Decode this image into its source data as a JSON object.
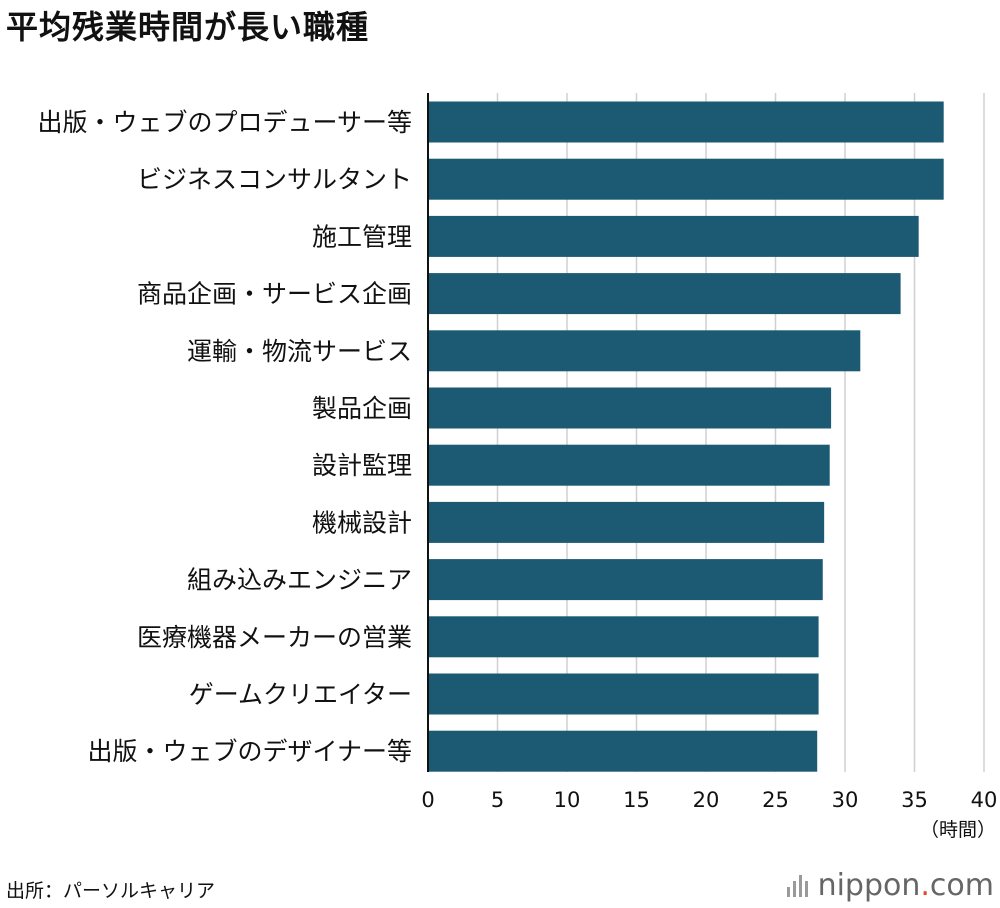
{
  "title": "平均残業時間が長い職種",
  "source": "出所：パーソルキャリア",
  "brand": {
    "name": "nippon",
    "dot": ".",
    "suffix": "com",
    "icon": "nippon-sound-bars-icon",
    "accent": "#e8442e"
  },
  "colors": {
    "bar": "#1b5a72",
    "grid": "#d0d0d0",
    "axis": "#111111"
  },
  "chart_data": {
    "type": "bar",
    "orientation": "horizontal",
    "title": "平均残業時間が長い職種",
    "categories": [
      "出版・ウェブのプロデューサー等",
      "ビジネスコンサルタント",
      "施工管理",
      "商品企画・サービス企画",
      "運輸・物流サービス",
      "製品企画",
      "設計監理",
      "機械設計",
      "組み込みエンジニア",
      "医療機器メーカーの営業",
      "ゲームクリエイター",
      "出版・ウェブのデザイナー等"
    ],
    "values": [
      37.1,
      37.1,
      35.3,
      34.0,
      31.1,
      29.0,
      28.9,
      28.5,
      28.4,
      28.1,
      28.1,
      28.0
    ],
    "xlim": [
      0,
      40
    ],
    "xticks": [
      0,
      5,
      10,
      15,
      20,
      25,
      30,
      35,
      40
    ],
    "xlabel": "（時間）",
    "grid": true
  }
}
